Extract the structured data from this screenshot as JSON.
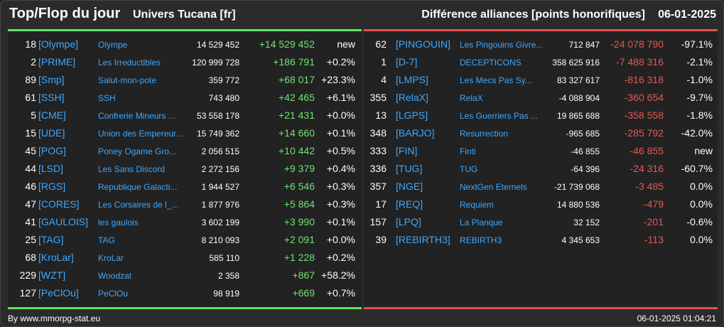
{
  "header": {
    "title": "Top/Flop du jour",
    "universe": "Univers Tucana [fr]",
    "metric": "Différence alliances [points honorifiques]",
    "date": "06-01-2025"
  },
  "colors": {
    "top_accent": "#5fe25f",
    "flop_accent": "#e0524f",
    "tag_link": "#3ea8ff",
    "positive": "#6ee36e",
    "negative": "#e85752"
  },
  "top": [
    {
      "rank": "18",
      "tag": "[Olympe]",
      "name": "Olympe",
      "points": "14 529 452",
      "diff": "+14 529 452",
      "pct": "new"
    },
    {
      "rank": "2",
      "tag": "[PRIME]",
      "name": "Les Irreductibles",
      "points": "120 999 728",
      "diff": "+186 791",
      "pct": "+0.2%"
    },
    {
      "rank": "89",
      "tag": "[Smp]",
      "name": "Salut-mon-pote",
      "points": "359 772",
      "diff": "+68 017",
      "pct": "+23.3%"
    },
    {
      "rank": "61",
      "tag": "[SSH]",
      "name": "SSH",
      "points": "743 480",
      "diff": "+42 465",
      "pct": "+6.1%"
    },
    {
      "rank": "5",
      "tag": "[CME]",
      "name": "Confrerie Mineurs ...",
      "points": "53 558 178",
      "diff": "+21 431",
      "pct": "+0.0%"
    },
    {
      "rank": "15",
      "tag": "[UDE]",
      "name": "Union des Empereur...",
      "points": "15 749 362",
      "diff": "+14 660",
      "pct": "+0.1%"
    },
    {
      "rank": "45",
      "tag": "[POG]",
      "name": "Poney Ogame Gro...",
      "points": "2 056 515",
      "diff": "+10 442",
      "pct": "+0.5%"
    },
    {
      "rank": "44",
      "tag": "[LSD]",
      "name": "Les Sans Discord",
      "points": "2 272 156",
      "diff": "+9 379",
      "pct": "+0.4%"
    },
    {
      "rank": "46",
      "tag": "[RGS]",
      "name": "Republique Galacti...",
      "points": "1 944 527",
      "diff": "+6 546",
      "pct": "+0.3%"
    },
    {
      "rank": "47",
      "tag": "[CORES]",
      "name": "Les Corsaires de l_...",
      "points": "1 877 976",
      "diff": "+5 864",
      "pct": "+0.3%"
    },
    {
      "rank": "41",
      "tag": "[GAULOIS]",
      "name": "les gaulois",
      "points": "3 602 199",
      "diff": "+3 990",
      "pct": "+0.1%"
    },
    {
      "rank": "25",
      "tag": "[TAG]",
      "name": "TAG",
      "points": "8 210 093",
      "diff": "+2 091",
      "pct": "+0.0%"
    },
    {
      "rank": "68",
      "tag": "[KroLar]",
      "name": "KroLar",
      "points": "585 110",
      "diff": "+1 228",
      "pct": "+0.2%"
    },
    {
      "rank": "229",
      "tag": "[WZT]",
      "name": "Woodzat",
      "points": "2 358",
      "diff": "+867",
      "pct": "+58.2%"
    },
    {
      "rank": "127",
      "tag": "[PeClOu]",
      "name": "PeClOu",
      "points": "98 919",
      "diff": "+669",
      "pct": "+0.7%"
    }
  ],
  "flop": [
    {
      "rank": "62",
      "tag": "[PINGOUIN]",
      "name": "Les Pingouins Givre...",
      "points": "712 847",
      "diff": "-24 078 790",
      "pct": "-97.1%"
    },
    {
      "rank": "1",
      "tag": "[D-7]",
      "name": "DECEPTICONS",
      "points": "358 625 916",
      "diff": "-7 488 316",
      "pct": "-2.1%"
    },
    {
      "rank": "4",
      "tag": "[LMPS]",
      "name": "Les Mecs Pas Sy...",
      "points": "83 327 617",
      "diff": "-816 318",
      "pct": "-1.0%"
    },
    {
      "rank": "355",
      "tag": "[RelaX]",
      "name": "RelaX",
      "points": "-4 088 904",
      "diff": "-360 654",
      "pct": "-9.7%"
    },
    {
      "rank": "13",
      "tag": "[LGPS]",
      "name": "Les Guerriers Pas ...",
      "points": "19 865 688",
      "diff": "-358 558",
      "pct": "-1.8%"
    },
    {
      "rank": "348",
      "tag": "[BARJO]",
      "name": "Resurrection",
      "points": "-965 685",
      "diff": "-285 792",
      "pct": "-42.0%"
    },
    {
      "rank": "333",
      "tag": "[FIN]",
      "name": "Finti",
      "points": "-46 855",
      "diff": "-46 855",
      "pct": "new"
    },
    {
      "rank": "336",
      "tag": "[TUG]",
      "name": "TUG",
      "points": "-64 396",
      "diff": "-24 316",
      "pct": "-60.7%"
    },
    {
      "rank": "357",
      "tag": "[NGE]",
      "name": "NextGen Eternels",
      "points": "-21 739 068",
      "diff": "-3 485",
      "pct": "0.0%"
    },
    {
      "rank": "17",
      "tag": "[REQ]",
      "name": "Requiem",
      "points": "14 880 536",
      "diff": "-479",
      "pct": "0.0%"
    },
    {
      "rank": "157",
      "tag": "[LPQ]",
      "name": "La Planque",
      "points": "32 152",
      "diff": "-201",
      "pct": "-0.6%"
    },
    {
      "rank": "39",
      "tag": "[REBIRTH3]",
      "name": "REBIRTH3",
      "points": "4 345 653",
      "diff": "-113",
      "pct": "0.0%"
    }
  ],
  "footer": {
    "source": "By www.mmorpg-stat.eu",
    "timestamp": "06-01-2025 01:04:21"
  }
}
